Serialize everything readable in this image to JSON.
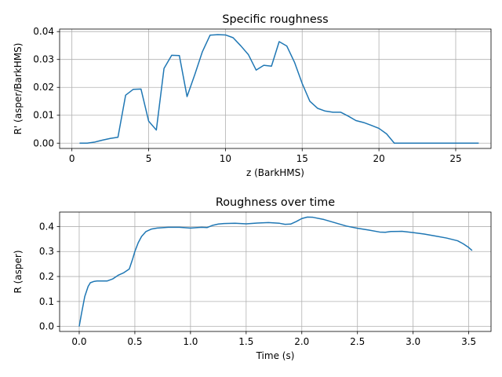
{
  "chart_data": [
    {
      "type": "line",
      "title": "Specific roughness",
      "xlabel": "z (BarkHMS)",
      "ylabel": "R' (asper/BarkHMS)",
      "xlim": [
        -0.8,
        27.3
      ],
      "ylim": [
        -0.0019,
        0.0409
      ],
      "grid": true,
      "xticks": [
        0,
        5,
        10,
        15,
        20,
        25
      ],
      "xtick_labels": [
        "0",
        "5",
        "10",
        "15",
        "20",
        "25"
      ],
      "yticks": [
        0.0,
        0.01,
        0.02,
        0.03,
        0.04
      ],
      "ytick_labels": [
        "0.00",
        "0.01",
        "0.02",
        "0.03",
        "0.04"
      ],
      "color": "#1f77b4",
      "series": [
        {
          "x": [
            0.5,
            1.0,
            1.5,
            2.0,
            2.5,
            3.0,
            3.5,
            4.0,
            4.5,
            5.0,
            5.5,
            6.0,
            6.5,
            7.0,
            7.5,
            8.0,
            8.5,
            9.0,
            9.5,
            10.0,
            10.5,
            11.0,
            11.5,
            12.0,
            12.5,
            13.0,
            13.5,
            14.0,
            14.5,
            15.0,
            15.5,
            16.0,
            16.5,
            17.0,
            17.5,
            18.0,
            18.5,
            19.0,
            19.5,
            20.0,
            20.5,
            21.0,
            21.5,
            22.0,
            22.5,
            23.0,
            23.5,
            24.0,
            24.5,
            25.0,
            25.5,
            26.0,
            26.5
          ],
          "y": [
            0.0,
            0.0,
            0.0004,
            0.0011,
            0.0017,
            0.0021,
            0.0172,
            0.0193,
            0.0194,
            0.0079,
            0.0047,
            0.0268,
            0.0315,
            0.0314,
            0.0167,
            0.0245,
            0.0328,
            0.0387,
            0.0389,
            0.0388,
            0.0378,
            0.0349,
            0.0317,
            0.0262,
            0.0279,
            0.0276,
            0.0364,
            0.0348,
            0.029,
            0.0214,
            0.015,
            0.0125,
            0.0115,
            0.0111,
            0.0111,
            0.0097,
            0.0081,
            0.0074,
            0.0064,
            0.0053,
            0.0033,
            0.0,
            0.0,
            0.0,
            0.0,
            0.0,
            0.0,
            0.0,
            0.0,
            0.0,
            0.0,
            0.0,
            0.0
          ]
        }
      ]
    },
    {
      "type": "line",
      "title": "Roughness over time",
      "xlabel": "Time (s)",
      "ylabel": "R (asper)",
      "xlim": [
        -0.176,
        3.7
      ],
      "ylim": [
        -0.02,
        0.458
      ],
      "grid": true,
      "xticks": [
        0.0,
        0.5,
        1.0,
        1.5,
        2.0,
        2.5,
        3.0,
        3.5
      ],
      "xtick_labels": [
        "0.0",
        "0.5",
        "1.0",
        "1.5",
        "2.0",
        "2.5",
        "3.0",
        "3.5"
      ],
      "yticks": [
        0.0,
        0.1,
        0.2,
        0.3,
        0.4
      ],
      "ytick_labels": [
        "0.0",
        "0.1",
        "0.2",
        "0.3",
        "0.4"
      ],
      "color": "#1f77b4",
      "series": [
        {
          "x": [
            0.0,
            0.02,
            0.05,
            0.08,
            0.1,
            0.13,
            0.16,
            0.2,
            0.25,
            0.3,
            0.35,
            0.4,
            0.45,
            0.48,
            0.5,
            0.53,
            0.56,
            0.6,
            0.65,
            0.7,
            0.8,
            0.9,
            1.0,
            1.1,
            1.15,
            1.2,
            1.25,
            1.3,
            1.4,
            1.5,
            1.6,
            1.7,
            1.8,
            1.85,
            1.9,
            1.95,
            2.0,
            2.05,
            2.1,
            2.2,
            2.3,
            2.4,
            2.5,
            2.6,
            2.7,
            2.75,
            2.8,
            2.9,
            3.0,
            3.1,
            3.2,
            3.3,
            3.4,
            3.45,
            3.5,
            3.53
          ],
          "y": [
            0.0,
            0.05,
            0.12,
            0.16,
            0.175,
            0.18,
            0.182,
            0.182,
            0.182,
            0.19,
            0.205,
            0.215,
            0.23,
            0.27,
            0.3,
            0.335,
            0.36,
            0.38,
            0.39,
            0.394,
            0.397,
            0.397,
            0.394,
            0.397,
            0.396,
            0.405,
            0.41,
            0.412,
            0.413,
            0.411,
            0.414,
            0.416,
            0.413,
            0.409,
            0.41,
            0.42,
            0.432,
            0.438,
            0.437,
            0.428,
            0.415,
            0.402,
            0.393,
            0.386,
            0.378,
            0.377,
            0.38,
            0.381,
            0.376,
            0.37,
            0.362,
            0.354,
            0.343,
            0.331,
            0.316,
            0.304
          ]
        }
      ]
    }
  ]
}
